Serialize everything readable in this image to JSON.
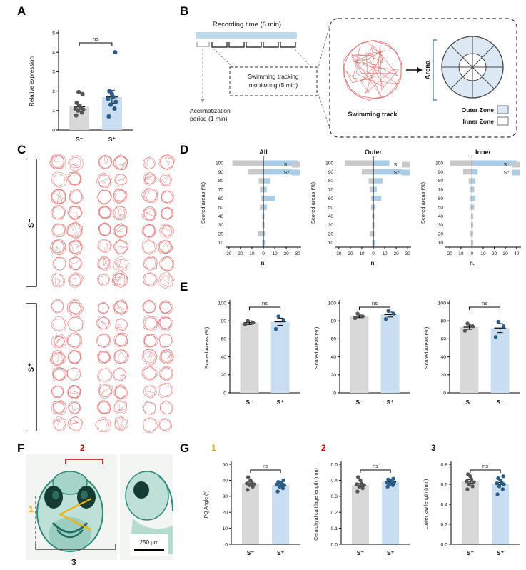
{
  "panels": {
    "A": {
      "label": "A"
    },
    "B": {
      "label": "B",
      "recording_time": "Recording time (6 min)",
      "tracking_line1": "Swimming tracking",
      "tracking_line2": "monitoring (5 min)",
      "acclimatization_line1": "Acclimatization",
      "acclimatization_line2": "period (1 min)",
      "swimming_track": "Swimming track",
      "arena": "Arena",
      "outer_zone": "Outer Zone",
      "inner_zone": "Inner Zone",
      "outer_zone_color": "#dce9f5",
      "inner_zone_color": "#ffffff"
    },
    "C": {
      "label": "C",
      "group_top": "S⁻",
      "group_bottom": "S⁺",
      "track_color": "#e06c6c"
    },
    "D": {
      "label": "D"
    },
    "E": {
      "label": "E"
    },
    "F": {
      "label": "F",
      "num1": "1",
      "num2": "2",
      "num3": "3",
      "scale_bar": "250 μm",
      "num1_color": "#e8a800",
      "num2_color": "#c00000",
      "num3_color": "#1a1a1a"
    },
    "G": {
      "label": "G"
    }
  },
  "chart_data": [
    {
      "id": "chart-A",
      "type": "bar_scatter",
      "ylabel": "Relative expression",
      "ylim": [
        0,
        5
      ],
      "yticks": [
        0,
        1,
        2,
        3,
        4,
        5
      ],
      "significance": "ns",
      "categories": [
        "S⁻",
        "S⁺"
      ],
      "series": [
        {
          "name": "S⁻",
          "mean": 1.2,
          "sem": 0.13,
          "bar_color": "#d8d8d8",
          "dot_color": "#555555",
          "dots": [
            0.75,
            0.9,
            1.0,
            1.05,
            1.1,
            1.15,
            1.25,
            1.4,
            1.85,
            1.95
          ]
        },
        {
          "name": "S⁺",
          "mean": 1.7,
          "sem": 0.33,
          "bar_color": "#c9def0",
          "dot_color": "#2b5c87",
          "dots": [
            0.7,
            1.1,
            1.3,
            1.45,
            1.6,
            1.7,
            1.85,
            2.0,
            4.0
          ]
        }
      ]
    },
    {
      "id": "chart-D1",
      "type": "diverging_bar",
      "title": "All",
      "ylabel": "Scored areas (%)",
      "xlabel": "n.",
      "categories": [
        100,
        90,
        80,
        70,
        60,
        50,
        40,
        30,
        20,
        10
      ],
      "xdomain": [
        -33,
        33
      ],
      "xticks": [
        -30,
        -20,
        -10,
        0,
        10,
        20,
        30
      ],
      "series": [
        {
          "name": "S⁻",
          "side": "left",
          "color": "#c9c9c9",
          "values": [
            27,
            13,
            4,
            3,
            2,
            3,
            1,
            1,
            5,
            1
          ]
        },
        {
          "name": "S⁺",
          "side": "right",
          "color": "#a9cce8",
          "values": [
            30,
            25,
            6,
            3,
            10,
            3,
            1,
            1,
            2,
            2
          ]
        }
      ]
    },
    {
      "id": "chart-D2",
      "type": "diverging_bar",
      "title": "Outer",
      "ylabel": "Scored areas (%)",
      "xlabel": "n.",
      "categories": [
        100,
        90,
        80,
        70,
        60,
        50,
        40,
        30,
        20,
        10
      ],
      "xdomain": [
        -33,
        33
      ],
      "xticks": [
        -30,
        -20,
        -10,
        0,
        10,
        20,
        30
      ],
      "series": [
        {
          "name": "S⁻",
          "side": "left",
          "color": "#c9c9c9",
          "values": [
            25,
            10,
            4,
            3,
            2,
            2,
            1,
            1,
            3,
            1
          ]
        },
        {
          "name": "S⁺",
          "side": "right",
          "color": "#a9cce8",
          "values": [
            14,
            25,
            8,
            3,
            7,
            2,
            1,
            1,
            1,
            2
          ]
        }
      ]
    },
    {
      "id": "chart-D3",
      "type": "diverging_bar",
      "title": "Inner",
      "ylabel": "Scored areas (%)",
      "xlabel": "n.",
      "categories": [
        100,
        90,
        80,
        70,
        60,
        50,
        40,
        30,
        20,
        10
      ],
      "xdomain": [
        -24,
        44
      ],
      "xticks": [
        -20,
        -10,
        0,
        10,
        20,
        30,
        40
      ],
      "series": [
        {
          "name": "S⁻",
          "side": "left",
          "color": "#c9c9c9",
          "values": [
            20,
            8,
            3,
            2,
            2,
            2,
            1,
            1,
            2,
            1
          ]
        },
        {
          "name": "S⁺",
          "side": "right",
          "color": "#a9cce8",
          "values": [
            40,
            5,
            3,
            2,
            3,
            2,
            1,
            1,
            1,
            1
          ]
        }
      ]
    },
    {
      "id": "chart-E1",
      "type": "bar_scatter",
      "ylabel": "Scored Areas (%)",
      "ylim": [
        0,
        100
      ],
      "yticks": [
        0,
        20,
        40,
        60,
        80,
        100
      ],
      "significance": "ns",
      "categories": [
        "S⁻",
        "S⁺"
      ],
      "series": [
        {
          "name": "S⁻",
          "mean": 78,
          "sem": 2,
          "bar_color": "#d8d8d8",
          "dot_color": "#555555",
          "dots": [
            76,
            78,
            80
          ]
        },
        {
          "name": "S⁺",
          "mean": 79,
          "sem": 4,
          "bar_color": "#c9def0",
          "dot_color": "#2b5c87",
          "dots": [
            71,
            81,
            85
          ]
        }
      ]
    },
    {
      "id": "chart-E2",
      "type": "bar_scatter",
      "ylabel": "Scored Areas (%)",
      "ylim": [
        0,
        100
      ],
      "yticks": [
        0,
        20,
        40,
        60,
        80,
        100
      ],
      "significance": "ns",
      "categories": [
        "S⁻",
        "S⁺"
      ],
      "series": [
        {
          "name": "S⁻",
          "mean": 85,
          "sem": 1.5,
          "bar_color": "#d8d8d8",
          "dot_color": "#555555",
          "dots": [
            83,
            85,
            88
          ]
        },
        {
          "name": "S⁺",
          "mean": 87,
          "sem": 2.7,
          "bar_color": "#c9def0",
          "dot_color": "#2b5c87",
          "dots": [
            82,
            88,
            91
          ]
        }
      ]
    },
    {
      "id": "chart-E3",
      "type": "bar_scatter",
      "ylabel": "Scored Areas (%)",
      "ylim": [
        0,
        100
      ],
      "yticks": [
        0,
        20,
        40,
        60,
        80,
        100
      ],
      "significance": "ns",
      "categories": [
        "S⁻",
        "S⁺"
      ],
      "series": [
        {
          "name": "S⁻",
          "mean": 73,
          "sem": 2.4,
          "bar_color": "#d8d8d8",
          "dot_color": "#555555",
          "dots": [
            69,
            74,
            77
          ]
        },
        {
          "name": "S⁺",
          "mean": 72,
          "sem": 5,
          "bar_color": "#c9def0",
          "dot_color": "#2b5c87",
          "dots": [
            62,
            74,
            79
          ]
        }
      ]
    },
    {
      "id": "chart-G1",
      "type": "bar_scatter",
      "number": "1",
      "number_color": "#e8a800",
      "ylabel": "PQ Angle (°)",
      "ylim": [
        0,
        50
      ],
      "yticks": [
        0,
        10,
        20,
        30,
        40,
        50
      ],
      "significance": "ns",
      "categories": [
        "S⁻",
        "S⁺"
      ],
      "series": [
        {
          "name": "S⁻",
          "mean": 38,
          "sem": 0.9,
          "bar_color": "#d8d8d8",
          "dot_color": "#555555",
          "dots": [
            34,
            36,
            37,
            37.5,
            38,
            39,
            40,
            42
          ]
        },
        {
          "name": "S⁺",
          "mean": 37,
          "sem": 0.8,
          "bar_color": "#c9def0",
          "dot_color": "#2b5c87",
          "dots": [
            33,
            35,
            36,
            37,
            37.5,
            38,
            38.5,
            39,
            40
          ]
        }
      ]
    },
    {
      "id": "chart-G2",
      "type": "bar_scatter",
      "number": "2",
      "number_color": "#c00000",
      "ylabel": "Ceratohyal cartilage length (mm)",
      "ylim": [
        0,
        0.5
      ],
      "yticks": [
        0,
        0.1,
        0.2,
        0.3,
        0.4,
        0.5
      ],
      "ytick_labels": [
        "0.0",
        "0.1",
        "0.2",
        "0.3",
        "0.4",
        "0.5"
      ],
      "significance": "ns",
      "categories": [
        "S⁻",
        "S⁺"
      ],
      "series": [
        {
          "name": "S⁻",
          "mean": 0.37,
          "sem": 0.01,
          "bar_color": "#d8d8d8",
          "dot_color": "#555555",
          "dots": [
            0.33,
            0.35,
            0.36,
            0.37,
            0.375,
            0.38,
            0.4,
            0.42
          ]
        },
        {
          "name": "S⁺",
          "mean": 0.39,
          "sem": 0.006,
          "bar_color": "#c9def0",
          "dot_color": "#2b5c87",
          "dots": [
            0.36,
            0.37,
            0.375,
            0.38,
            0.385,
            0.39,
            0.4,
            0.405,
            0.41
          ]
        }
      ]
    },
    {
      "id": "chart-G3",
      "type": "bar_scatter",
      "number": "3",
      "number_color": "#1a1a1a",
      "ylabel": "Lower jaw length (mm)",
      "ylim": [
        0,
        0.8
      ],
      "yticks": [
        0,
        0.2,
        0.4,
        0.6,
        0.8
      ],
      "ytick_labels": [
        "0.0",
        "0.2",
        "0.4",
        "0.6",
        "0.8"
      ],
      "significance": "ns",
      "categories": [
        "S⁻",
        "S⁺"
      ],
      "series": [
        {
          "name": "S⁻",
          "mean": 0.63,
          "sem": 0.018,
          "bar_color": "#d8d8d8",
          "dot_color": "#555555",
          "dots": [
            0.55,
            0.58,
            0.6,
            0.62,
            0.63,
            0.65,
            0.68,
            0.7
          ]
        },
        {
          "name": "S⁺",
          "mean": 0.6,
          "sem": 0.018,
          "bar_color": "#c9def0",
          "dot_color": "#2b5c87",
          "dots": [
            0.5,
            0.55,
            0.58,
            0.6,
            0.61,
            0.62,
            0.64,
            0.66,
            0.68
          ]
        }
      ]
    }
  ]
}
